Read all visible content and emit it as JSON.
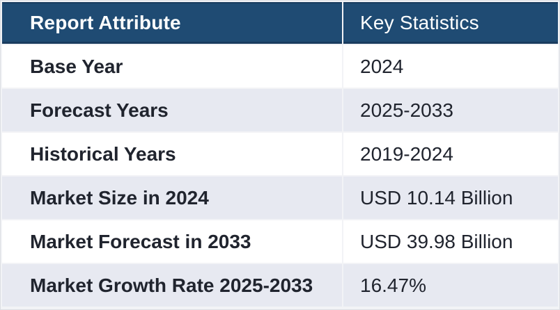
{
  "table": {
    "headers": {
      "attribute": "Report Attribute",
      "statistics": "Key Statistics"
    },
    "rows": [
      {
        "attribute": "Base Year",
        "value": "2024"
      },
      {
        "attribute": "Forecast Years",
        "value": "2025-2033"
      },
      {
        "attribute": "Historical Years",
        "value": "2019-2024"
      },
      {
        "attribute": "Market Size in 2024",
        "value": "USD 10.14 Billion"
      },
      {
        "attribute": "Market Forecast in 2033",
        "value": "USD 39.98 Billion"
      },
      {
        "attribute": "Market Growth Rate 2025-2033",
        "value": "16.47%"
      }
    ]
  },
  "colors": {
    "header_bg": "#1F4B73",
    "header_edge": "#1A3C5F",
    "header_text": "#FDFEFE",
    "row_bg": "#FFFFFF",
    "row_alt_bg": "#E7E9F1",
    "text": "#20242E",
    "frame": "#F2F3F6",
    "frame_edge": "#DCDEE3"
  },
  "chart_data": {
    "type": "table",
    "columns": [
      "Report Attribute",
      "Key Statistics"
    ],
    "rows": [
      [
        "Base Year",
        "2024"
      ],
      [
        "Forecast Years",
        "2025-2033"
      ],
      [
        "Historical Years",
        "2019-2024"
      ],
      [
        "Market Size in 2024",
        "USD 10.14 Billion"
      ],
      [
        "Market Forecast in 2033",
        "USD 39.98 Billion"
      ],
      [
        "Market Growth Rate 2025-2033",
        "16.47%"
      ]
    ]
  }
}
